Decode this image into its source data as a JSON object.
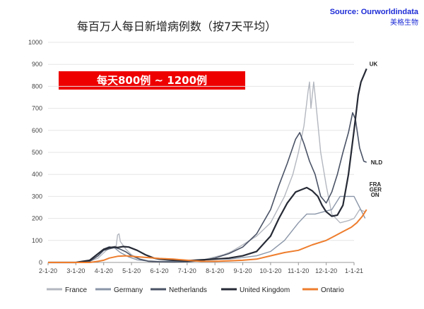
{
  "chart_data": {
    "type": "line",
    "title": "每百万人每日新增病例数（按7天平均）",
    "source": "Source: Ourworldindata",
    "source_org": "美格生物",
    "annotation": "每天800例 ~ 1200例",
    "x_tick_labels": [
      "2-1-20",
      "3-1-20",
      "4-1-20",
      "5-1-20",
      "6-1-20",
      "7-1-20",
      "8-1-20",
      "9-1-20",
      "10-1-20",
      "11-1-20",
      "12-1-20",
      "1-1-21"
    ],
    "ylim": [
      0,
      1000
    ],
    "y_ticks": [
      0,
      100,
      200,
      300,
      400,
      500,
      600,
      700,
      800,
      900,
      1000
    ],
    "grid": "horizontal",
    "legend_position": "bottom",
    "series": [
      {
        "name": "France",
        "end_label": "FRA",
        "color": "#b3b7bf",
        "width": 1.4,
        "points": [
          [
            0,
            0
          ],
          [
            1,
            0
          ],
          [
            1.5,
            5
          ],
          [
            1.8,
            20
          ],
          [
            2.1,
            55
          ],
          [
            2.3,
            70
          ],
          [
            2.45,
            75
          ],
          [
            2.5,
            125
          ],
          [
            2.55,
            130
          ],
          [
            2.6,
            95
          ],
          [
            2.8,
            60
          ],
          [
            3.0,
            35
          ],
          [
            3.3,
            15
          ],
          [
            3.6,
            8
          ],
          [
            4,
            5
          ],
          [
            4.5,
            5
          ],
          [
            5,
            6
          ],
          [
            5.5,
            10
          ],
          [
            6,
            25
          ],
          [
            6.3,
            35
          ],
          [
            6.6,
            50
          ],
          [
            7,
            80
          ],
          [
            7.5,
            120
          ],
          [
            8,
            180
          ],
          [
            8.5,
            300
          ],
          [
            8.8,
            400
          ],
          [
            9,
            500
          ],
          [
            9.2,
            620
          ],
          [
            9.35,
            780
          ],
          [
            9.4,
            820
          ],
          [
            9.45,
            700
          ],
          [
            9.55,
            820
          ],
          [
            9.6,
            760
          ],
          [
            9.8,
            500
          ],
          [
            10,
            350
          ],
          [
            10.2,
            220
          ],
          [
            10.5,
            180
          ],
          [
            10.8,
            190
          ],
          [
            11,
            200
          ],
          [
            11.2,
            240
          ],
          [
            11.4,
            230
          ]
        ]
      },
      {
        "name": "Germany",
        "end_label": "GER",
        "color": "#8a96a8",
        "width": 1.4,
        "points": [
          [
            0,
            0
          ],
          [
            1,
            0
          ],
          [
            1.5,
            10
          ],
          [
            1.8,
            40
          ],
          [
            2,
            60
          ],
          [
            2.2,
            72
          ],
          [
            2.4,
            65
          ],
          [
            2.6,
            45
          ],
          [
            2.9,
            25
          ],
          [
            3.2,
            12
          ],
          [
            3.6,
            6
          ],
          [
            4,
            4
          ],
          [
            4.5,
            5
          ],
          [
            5,
            5
          ],
          [
            5.5,
            10
          ],
          [
            6,
            15
          ],
          [
            6.5,
            15
          ],
          [
            7,
            22
          ],
          [
            7.5,
            30
          ],
          [
            8,
            50
          ],
          [
            8.5,
            100
          ],
          [
            9,
            180
          ],
          [
            9.3,
            220
          ],
          [
            9.6,
            220
          ],
          [
            9.9,
            230
          ],
          [
            10.2,
            240
          ],
          [
            10.5,
            300
          ],
          [
            10.8,
            300
          ],
          [
            11,
            300
          ],
          [
            11.2,
            250
          ],
          [
            11.4,
            200
          ]
        ]
      },
      {
        "name": "Netherlands",
        "end_label": "NLD",
        "color": "#4a5366",
        "width": 1.6,
        "points": [
          [
            0,
            0
          ],
          [
            1,
            0
          ],
          [
            1.5,
            5
          ],
          [
            1.8,
            30
          ],
          [
            2,
            55
          ],
          [
            2.2,
            62
          ],
          [
            2.4,
            68
          ],
          [
            2.6,
            60
          ],
          [
            2.8,
            48
          ],
          [
            3,
            30
          ],
          [
            3.3,
            15
          ],
          [
            3.6,
            5
          ],
          [
            4,
            3
          ],
          [
            4.5,
            2
          ],
          [
            5,
            3
          ],
          [
            5.5,
            8
          ],
          [
            6,
            20
          ],
          [
            6.5,
            40
          ],
          [
            7,
            70
          ],
          [
            7.5,
            130
          ],
          [
            8,
            240
          ],
          [
            8.3,
            350
          ],
          [
            8.6,
            450
          ],
          [
            8.9,
            560
          ],
          [
            9.05,
            590
          ],
          [
            9.2,
            540
          ],
          [
            9.4,
            460
          ],
          [
            9.6,
            400
          ],
          [
            9.8,
            300
          ],
          [
            10,
            270
          ],
          [
            10.2,
            320
          ],
          [
            10.4,
            400
          ],
          [
            10.6,
            500
          ],
          [
            10.8,
            590
          ],
          [
            10.95,
            680
          ],
          [
            11.05,
            650
          ],
          [
            11.2,
            520
          ],
          [
            11.35,
            460
          ],
          [
            11.45,
            455
          ]
        ]
      },
      {
        "name": "United Kingdom",
        "end_label": "UK",
        "color": "#262a35",
        "width": 2.2,
        "points": [
          [
            0,
            0
          ],
          [
            1,
            0
          ],
          [
            1.5,
            10
          ],
          [
            1.8,
            40
          ],
          [
            2,
            60
          ],
          [
            2.2,
            68
          ],
          [
            2.4,
            70
          ],
          [
            2.5,
            68
          ],
          [
            2.7,
            72
          ],
          [
            2.9,
            70
          ],
          [
            3.2,
            55
          ],
          [
            3.5,
            35
          ],
          [
            3.8,
            20
          ],
          [
            4,
            15
          ],
          [
            4.5,
            10
          ],
          [
            5,
            8
          ],
          [
            5.5,
            12
          ],
          [
            6,
            15
          ],
          [
            6.5,
            20
          ],
          [
            7,
            30
          ],
          [
            7.5,
            50
          ],
          [
            8,
            120
          ],
          [
            8.3,
            200
          ],
          [
            8.6,
            270
          ],
          [
            8.9,
            320
          ],
          [
            9.1,
            330
          ],
          [
            9.3,
            340
          ],
          [
            9.5,
            325
          ],
          [
            9.7,
            300
          ],
          [
            9.85,
            260
          ],
          [
            10,
            230
          ],
          [
            10.2,
            210
          ],
          [
            10.4,
            215
          ],
          [
            10.6,
            260
          ],
          [
            10.8,
            400
          ],
          [
            11.0,
            600
          ],
          [
            11.15,
            760
          ],
          [
            11.25,
            820
          ],
          [
            11.35,
            850
          ],
          [
            11.45,
            880
          ]
        ]
      },
      {
        "name": "Ontario",
        "end_label": "ON",
        "color": "#ee7d2d",
        "width": 2.0,
        "points": [
          [
            0,
            0
          ],
          [
            1,
            0
          ],
          [
            1.5,
            0
          ],
          [
            1.8,
            5
          ],
          [
            2,
            10
          ],
          [
            2.2,
            20
          ],
          [
            2.5,
            28
          ],
          [
            2.8,
            30
          ],
          [
            3,
            28
          ],
          [
            3.3,
            25
          ],
          [
            3.6,
            22
          ],
          [
            4,
            18
          ],
          [
            4.5,
            15
          ],
          [
            5,
            10
          ],
          [
            5.5,
            5
          ],
          [
            6,
            5
          ],
          [
            6.5,
            7
          ],
          [
            7,
            10
          ],
          [
            7.5,
            15
          ],
          [
            8,
            30
          ],
          [
            8.5,
            45
          ],
          [
            9,
            55
          ],
          [
            9.5,
            80
          ],
          [
            10,
            100
          ],
          [
            10.3,
            120
          ],
          [
            10.6,
            140
          ],
          [
            10.9,
            160
          ],
          [
            11.1,
            180
          ],
          [
            11.3,
            210
          ],
          [
            11.45,
            240
          ]
        ]
      }
    ]
  }
}
